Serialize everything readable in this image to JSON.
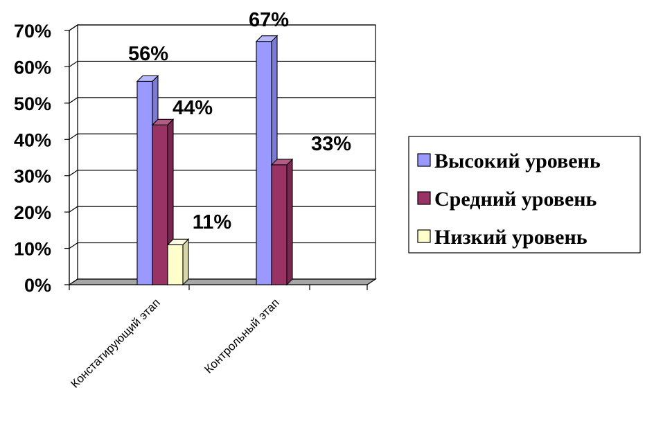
{
  "chart_data": {
    "type": "bar",
    "categories": [
      "Констатирующий этап",
      "Контрольный этап"
    ],
    "series": [
      {
        "name": "Высокий уровень",
        "values": [
          56,
          67
        ],
        "labels": [
          "56%",
          "67%"
        ],
        "color": "#9999ff",
        "side": "#7b7bd6",
        "top": "#b8b8ff"
      },
      {
        "name": "Средний уровень",
        "values": [
          44,
          33
        ],
        "labels": [
          "44%",
          "33%"
        ],
        "color": "#993366",
        "side": "#7a2850",
        "top": "#b35a85"
      },
      {
        "name": "Низкий уровень",
        "values": [
          11,
          null
        ],
        "labels": [
          "11%",
          ""
        ],
        "color": "#ffffcc",
        "side": "#d6d6a6",
        "top": "#ffffe6"
      }
    ],
    "yticks": [
      "0%",
      "10%",
      "20%",
      "30%",
      "40%",
      "50%",
      "60%",
      "70%"
    ],
    "ylim": [
      0,
      70
    ],
    "grid": true,
    "legend_position": "right",
    "title": "",
    "xlabel": "",
    "ylabel": ""
  }
}
